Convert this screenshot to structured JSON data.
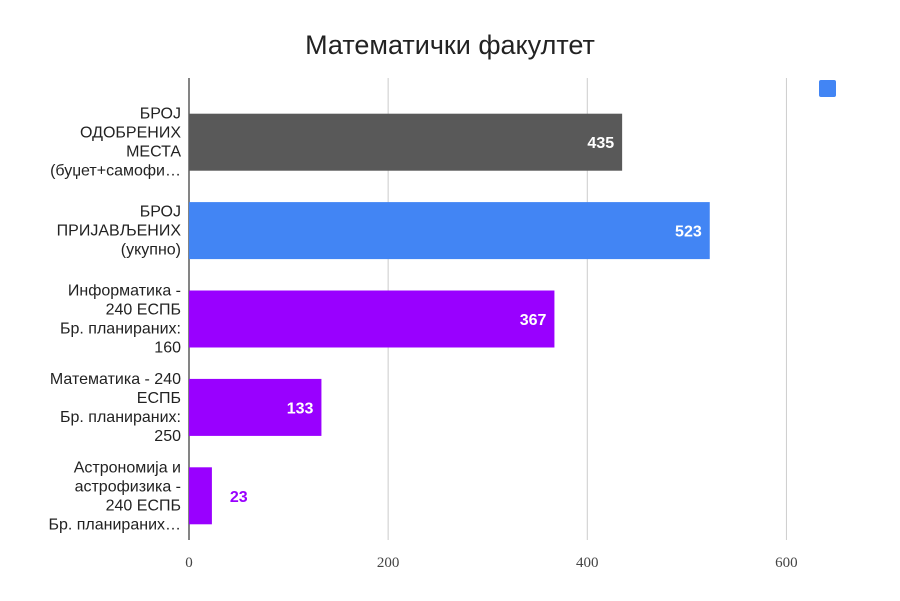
{
  "chart_data": {
    "type": "bar",
    "orientation": "horizontal",
    "title": "Математички факултет",
    "xlabel": "",
    "ylabel": "",
    "xlim": [
      0,
      700
    ],
    "xticks": [
      0,
      200,
      400,
      600
    ],
    "grid": true,
    "legend": {
      "placement": "top-right",
      "entries": [
        {
          "name": "",
          "color": "#4285f4"
        }
      ]
    },
    "categories": [
      [
        "БРОЈ",
        "ОДОБРЕНИХ",
        "МЕСТА",
        "(буџет+самофи…"
      ],
      [
        "БРОЈ",
        "ПРИЈАВЉЕНИХ",
        "(укупно)"
      ],
      [
        "Информатика -",
        "240  ЕСПБ",
        "Бр. планираних:",
        "160"
      ],
      [
        "Математика - 240",
        "ЕСПБ",
        "Бр. планираних:",
        "250"
      ],
      [
        "Астрономија и",
        "астрофизика -",
        "240  ЕСПБ",
        "Бр. планираних…"
      ]
    ],
    "values": [
      435,
      523,
      367,
      133,
      23
    ],
    "value_labels": [
      "435",
      "523",
      "367",
      "133",
      "23"
    ],
    "colors": [
      "#595959",
      "#4285f4",
      "#9900ff",
      "#9900ff",
      "#9900ff"
    ]
  }
}
